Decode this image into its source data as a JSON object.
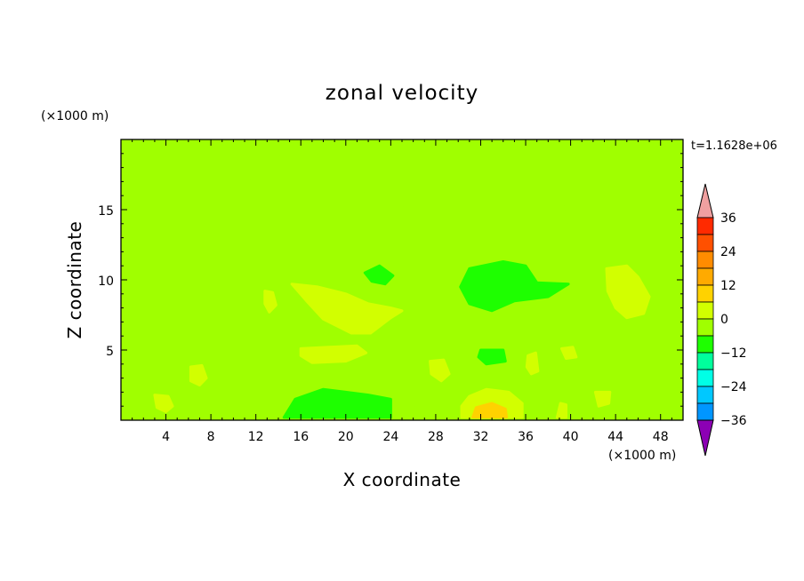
{
  "chart_data": {
    "type": "heatmap",
    "title": "zonal velocity",
    "xlabel": "X coordinate",
    "ylabel": "Z coordinate",
    "x_unit": "(×1000 m)",
    "z_unit": "(×1000 m)",
    "time_label": "t=1.1628e+06",
    "xlim": [
      0,
      50
    ],
    "ylim": [
      0,
      20
    ],
    "x_ticks": [
      4,
      8,
      12,
      16,
      20,
      24,
      28,
      32,
      36,
      40,
      44,
      48
    ],
    "y_ticks": [
      5,
      10,
      15
    ],
    "colorbar": {
      "tick_values": [
        36,
        24,
        12,
        0,
        -12,
        -24,
        -36
      ],
      "tick_labels": [
        "36",
        "24",
        "12",
        "0",
        "−12",
        "−24",
        "−36"
      ],
      "levels": [
        42,
        36,
        30,
        24,
        18,
        12,
        6,
        0,
        -6,
        -12,
        -18,
        -24,
        -30,
        -36,
        -42
      ],
      "colors": [
        "#f07878",
        "#ff2a00",
        "#ff5000",
        "#ff8c00",
        "#ffaa00",
        "#ffd200",
        "#d2ff00",
        "#a0ff00",
        "#1eff00",
        "#00ff9c",
        "#00ffe6",
        "#00c8ff",
        "#0096ff",
        "#0050ff",
        "#0000ff",
        "#0000c8",
        "#1e0096",
        "#8000a0"
      ],
      "over_color": "#f0a0a0",
      "under_color": "#8c00b4"
    },
    "field": {
      "background_value": 1,
      "regions": [
        {
          "value": 4,
          "points": [
            [
              0,
              19.8
            ],
            [
              15,
              19.8
            ],
            [
              14,
              18.5
            ],
            [
              10,
              16.5
            ],
            [
              6,
              15.8
            ],
            [
              1,
              15.3
            ],
            [
              0,
              15.5
            ]
          ]
        },
        {
          "value": 4,
          "points": [
            [
              20,
              19.8
            ],
            [
              23,
              19.8
            ],
            [
              22.5,
              18.5
            ],
            [
              21,
              17.5
            ],
            [
              20.5,
              18.8
            ]
          ]
        },
        {
          "value": 4,
          "points": [
            [
              40,
              19.8
            ],
            [
              45,
              19.8
            ],
            [
              44,
              18.5
            ],
            [
              42,
              18.5
            ],
            [
              40.5,
              19
            ]
          ]
        },
        {
          "value": 4,
          "points": [
            [
              46,
              19.8
            ],
            [
              50,
              19.8
            ],
            [
              50,
              15.5
            ],
            [
              49,
              15
            ],
            [
              47.5,
              15.5
            ],
            [
              47,
              17
            ],
            [
              46.5,
              19
            ]
          ]
        },
        {
          "value": 4,
          "points": [
            [
              0,
              11.5
            ],
            [
              1.2,
              11
            ],
            [
              1.5,
              10
            ],
            [
              1.3,
              7.5
            ],
            [
              1,
              6.5
            ],
            [
              0,
              6
            ]
          ]
        },
        {
          "value": 4,
          "points": [
            [
              9,
              16.2
            ],
            [
              13,
              17.5
            ],
            [
              17,
              17
            ],
            [
              21,
              16.5
            ],
            [
              25,
              15.5
            ],
            [
              27,
              13.5
            ],
            [
              27.2,
              10
            ],
            [
              26,
              8
            ],
            [
              25,
              6.8
            ],
            [
              21,
              6.2
            ],
            [
              17,
              6
            ],
            [
              14,
              5.8
            ],
            [
              11,
              6.4
            ],
            [
              10.5,
              8
            ],
            [
              11,
              10
            ],
            [
              10.5,
              11.5
            ],
            [
              11,
              13.5
            ],
            [
              10,
              15
            ]
          ]
        },
        {
          "value": 4,
          "points": [
            [
              40,
              17
            ],
            [
              42,
              16.3
            ],
            [
              44,
              15.5
            ],
            [
              46,
              14.8
            ],
            [
              48.5,
              13.8
            ],
            [
              50,
              13
            ],
            [
              50,
              5.5
            ],
            [
              48,
              5
            ],
            [
              46,
              5
            ],
            [
              44,
              4.8
            ],
            [
              42,
              5.2
            ],
            [
              40,
              5.5
            ],
            [
              38.5,
              6.8
            ],
            [
              39.5,
              8.5
            ],
            [
              40.5,
              11
            ],
            [
              40,
              13.5
            ],
            [
              39.5,
              15.5
            ]
          ]
        },
        {
          "value": 4,
          "points": [
            [
              0,
              1.2
            ],
            [
              2,
              1.7
            ],
            [
              4,
              1.5
            ],
            [
              5,
              1.8
            ],
            [
              6,
              3.5
            ],
            [
              7,
              5
            ],
            [
              6.5,
              6
            ],
            [
              4,
              6.3
            ],
            [
              2,
              5.8
            ],
            [
              0.8,
              5.2
            ],
            [
              0,
              5
            ]
          ]
        },
        {
          "value": 4,
          "points": [
            [
              5,
              0.2
            ],
            [
              9,
              0.2
            ],
            [
              9,
              1.5
            ],
            [
              8,
              2
            ],
            [
              6,
              2.2
            ],
            [
              5,
              1.5
            ]
          ]
        },
        {
          "value": 4,
          "points": [
            [
              11,
              0.2
            ],
            [
              13,
              0.2
            ],
            [
              12.5,
              1.5
            ],
            [
              11.5,
              2.3
            ],
            [
              10.8,
              1.5
            ]
          ]
        },
        {
          "value": 4,
          "points": [
            [
              26,
              0.2
            ],
            [
              39,
              0.2
            ],
            [
              38.5,
              2.5
            ],
            [
              38,
              3.5
            ],
            [
              36.5,
              4.8
            ],
            [
              35,
              5.2
            ],
            [
              33,
              3.5
            ],
            [
              30,
              2.7
            ],
            [
              28,
              2.5
            ],
            [
              26.5,
              2.2
            ]
          ]
        },
        {
          "value": 4,
          "points": [
            [
              39,
              0.2
            ],
            [
              45,
              0.2
            ],
            [
              44,
              1
            ],
            [
              42,
              1.3
            ],
            [
              40,
              1
            ]
          ]
        },
        {
          "value": 4,
          "points": [
            [
              46.5,
              0.2
            ],
            [
              49.5,
              0.2
            ],
            [
              49,
              1.3
            ],
            [
              47.5,
              1.5
            ],
            [
              46.8,
              1
            ]
          ]
        },
        {
          "value": 4,
          "points": [
            [
              21,
              4.8
            ],
            [
              23,
              5.5
            ],
            [
              25,
              5.2
            ],
            [
              25.5,
              4.4
            ],
            [
              23,
              4.2
            ],
            [
              21.5,
              4.3
            ]
          ]
        },
        {
          "value": -4,
          "points": [
            [
              21.7,
              10.5
            ],
            [
              23,
              11
            ],
            [
              24.2,
              10.3
            ],
            [
              23.5,
              9.7
            ],
            [
              22.3,
              9.9
            ]
          ]
        },
        {
          "value": -4,
          "points": [
            [
              31,
              10.8
            ],
            [
              34,
              11.3
            ],
            [
              36,
              11
            ],
            [
              37,
              9.8
            ],
            [
              39.8,
              9.7
            ],
            [
              38,
              8.8
            ],
            [
              35,
              8.5
            ],
            [
              33,
              7.8
            ],
            [
              31,
              8.3
            ],
            [
              30.2,
              9.5
            ]
          ]
        },
        {
          "value": -4,
          "points": [
            [
              32,
              5
            ],
            [
              34,
              5
            ],
            [
              34.2,
              4.2
            ],
            [
              32.5,
              4
            ],
            [
              31.8,
              4.5
            ]
          ]
        },
        {
          "value": -4,
          "points": [
            [
              14.5,
              0.2
            ],
            [
              24,
              0.2
            ],
            [
              24,
              1.5
            ],
            [
              22,
              1.8
            ],
            [
              18,
              2.2
            ],
            [
              15.5,
              1.5
            ]
          ]
        },
        {
          "value": 8,
          "points": [
            [
              15.2,
              9.7
            ],
            [
              16.5,
              8.5
            ],
            [
              18,
              7.2
            ],
            [
              20.5,
              6.2
            ],
            [
              22.2,
              6.2
            ],
            [
              24,
              7.3
            ],
            [
              25,
              7.8
            ],
            [
              24,
              8
            ],
            [
              22,
              8.3
            ],
            [
              20,
              9
            ],
            [
              17.5,
              9.5
            ]
          ]
        },
        {
          "value": 8,
          "points": [
            [
              16,
              5.1
            ],
            [
              18.5,
              5.2
            ],
            [
              21,
              5.3
            ],
            [
              21.8,
              4.8
            ],
            [
              20,
              4.2
            ],
            [
              17,
              4.1
            ],
            [
              16,
              4.6
            ]
          ]
        },
        {
          "value": 8,
          "points": [
            [
              12.8,
              9.2
            ],
            [
              13.5,
              9.1
            ],
            [
              13.8,
              8.2
            ],
            [
              13.2,
              7.7
            ],
            [
              12.8,
              8.3
            ]
          ]
        },
        {
          "value": 8,
          "points": [
            [
              43.2,
              10.8
            ],
            [
              45,
              11
            ],
            [
              46,
              10.2
            ],
            [
              47,
              8.8
            ],
            [
              46.5,
              7.6
            ],
            [
              45,
              7.3
            ],
            [
              44,
              8
            ],
            [
              43.3,
              9.2
            ]
          ]
        },
        {
          "value": 8,
          "points": [
            [
              6.2,
              3.8
            ],
            [
              7.2,
              3.9
            ],
            [
              7.6,
              3
            ],
            [
              7,
              2.5
            ],
            [
              6.2,
              2.8
            ]
          ]
        },
        {
          "value": 8,
          "points": [
            [
              3,
              1.8
            ],
            [
              4.2,
              1.7
            ],
            [
              4.6,
              1
            ],
            [
              4,
              0.6
            ],
            [
              3.2,
              0.9
            ]
          ]
        },
        {
          "value": 8,
          "points": [
            [
              27.5,
              4.2
            ],
            [
              28.7,
              4.3
            ],
            [
              29.2,
              3.3
            ],
            [
              28.5,
              2.8
            ],
            [
              27.6,
              3.3
            ]
          ]
        },
        {
          "value": 8,
          "points": [
            [
              36.2,
              4.6
            ],
            [
              36.9,
              4.8
            ],
            [
              37.1,
              3.5
            ],
            [
              36.5,
              3.3
            ],
            [
              36.1,
              3.8
            ]
          ]
        },
        {
          "value": 8,
          "points": [
            [
              39.2,
              5.1
            ],
            [
              40.2,
              5.2
            ],
            [
              40.5,
              4.5
            ],
            [
              39.6,
              4.4
            ]
          ]
        },
        {
          "value": 8,
          "points": [
            [
              42.2,
              2
            ],
            [
              43.5,
              2
            ],
            [
              43.4,
              1.2
            ],
            [
              42.5,
              1
            ]
          ]
        },
        {
          "value": 8,
          "points": [
            [
              30.3,
              0.2
            ],
            [
              35.7,
              0.2
            ],
            [
              35.7,
              1.2
            ],
            [
              34.5,
              2
            ],
            [
              32.5,
              2.2
            ],
            [
              31,
              1.7
            ],
            [
              30.3,
              1
            ]
          ]
        },
        {
          "value": 8,
          "points": [
            [
              38.8,
              0.2
            ],
            [
              39.6,
              0.2
            ],
            [
              39.6,
              1.1
            ],
            [
              39.1,
              1.2
            ]
          ]
        },
        {
          "value": 14,
          "points": [
            [
              31.3,
              0.2
            ],
            [
              34.3,
              0.2
            ],
            [
              34.2,
              0.8
            ],
            [
              33,
              1.2
            ],
            [
              31.6,
              0.9
            ]
          ]
        }
      ]
    }
  }
}
